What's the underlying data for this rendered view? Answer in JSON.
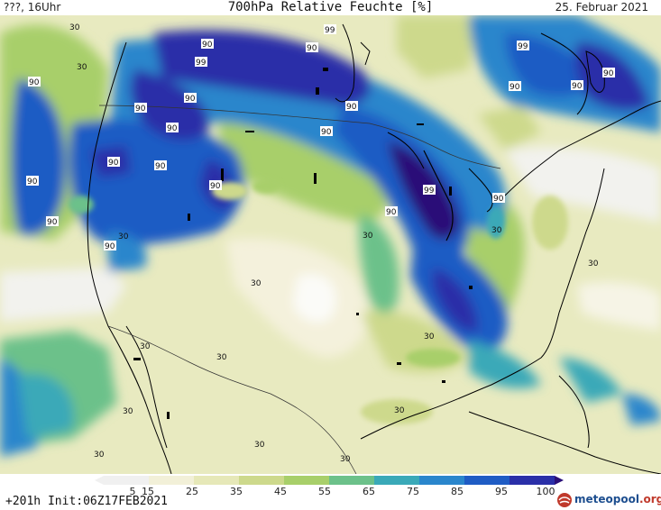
{
  "header": {
    "left_label": "???, 16Uhr",
    "title": "700hPa Relative Feuchte [%]",
    "date": "25. Februar 2021"
  },
  "footer": {
    "init_text": "+201h Init:06Z17FEB2021",
    "logo_name": "meteopool",
    "logo_tld": ".org"
  },
  "colorbar": {
    "ticks": [
      "5",
      "15",
      "25",
      "35",
      "45",
      "55",
      "65",
      "75",
      "85",
      "95",
      "100"
    ],
    "colors": [
      "#f0f0f0",
      "#f2f0d8",
      "#e6e8b8",
      "#cdd98c",
      "#a8cf6a",
      "#6cc18a",
      "#3aa9b8",
      "#2a86cc",
      "#1f5cc4",
      "#2a2fa8",
      "#2a0f78"
    ]
  },
  "contour_labels": [
    "30",
    "30",
    "90",
    "90",
    "99",
    "90",
    "99",
    "90",
    "90",
    "90",
    "90",
    "99",
    "90",
    "90",
    "90",
    "90",
    "90",
    "90",
    "99",
    "90",
    "90",
    "90",
    "90",
    "30",
    "30",
    "30",
    "90",
    "90",
    "30",
    "30",
    "30",
    "30",
    "30",
    "30",
    "30",
    "30",
    "30",
    "30"
  ]
}
